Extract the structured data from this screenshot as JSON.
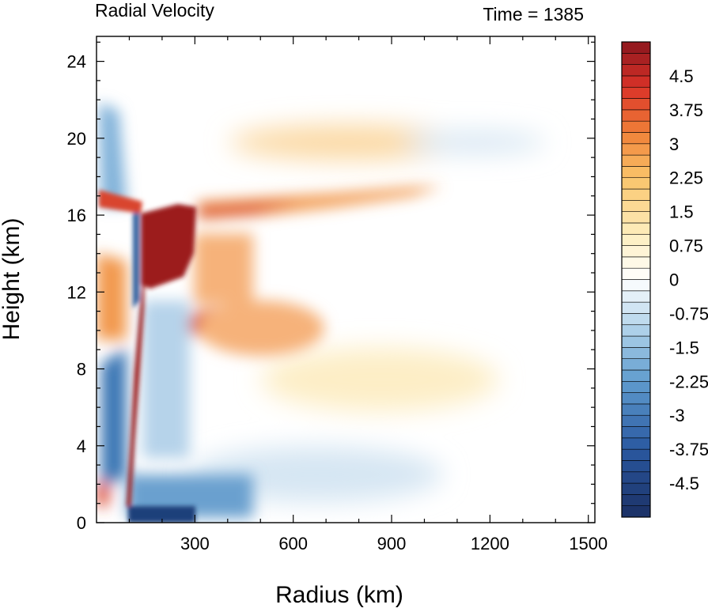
{
  "chart_data": {
    "type": "heatmap",
    "title": "Radial Velocity",
    "subtitle": "Time = 1385",
    "xlabel": "Radius (km)",
    "ylabel": "Height (km)",
    "xlim": [
      0,
      1520
    ],
    "ylim": [
      0,
      25.3
    ],
    "x_ticks": [
      300,
      600,
      900,
      1200,
      1500
    ],
    "x_tick_labels": [
      "300",
      "600",
      "900",
      "1200",
      "1500"
    ],
    "y_ticks": [
      0,
      4,
      8,
      12,
      16,
      20,
      24
    ],
    "y_tick_labels": [
      "0",
      "4",
      "8",
      "12",
      "16",
      "20",
      "24"
    ],
    "grid": false,
    "colorbar": {
      "placement": "right",
      "levels": [
        -5.25,
        -5.0,
        -4.75,
        -4.5,
        -4.25,
        -4.0,
        -3.75,
        -3.5,
        -3.25,
        -3.0,
        -2.75,
        -2.5,
        -2.25,
        -2.0,
        -1.75,
        -1.5,
        -1.25,
        -1.0,
        -0.75,
        -0.5,
        -0.25,
        0,
        0.25,
        0.5,
        0.75,
        1.0,
        1.25,
        1.5,
        1.75,
        2.0,
        2.25,
        2.5,
        2.75,
        3.0,
        3.25,
        3.5,
        3.75,
        4.0,
        4.25,
        4.5,
        4.75,
        5.0,
        5.25
      ],
      "labels": [
        "4.5",
        "3.75",
        "3",
        "2.25",
        "1.5",
        "0.75",
        "0",
        "-0.75",
        "-1.5",
        "-2.25",
        "-3",
        "-3.75",
        "-4.5"
      ],
      "label_values": [
        4.5,
        3.75,
        3.0,
        2.25,
        1.5,
        0.75,
        0,
        -0.75,
        -1.5,
        -2.25,
        -3.0,
        -3.75,
        -4.5
      ]
    },
    "features": [
      {
        "x": [
          150,
          260
        ],
        "y": [
          12.5,
          16.5
        ],
        "value": 5.5
      },
      {
        "x": [
          100,
          150
        ],
        "y": [
          1,
          16
        ],
        "value": 5.5
      },
      {
        "x": [
          250,
          900
        ],
        "y": [
          16.2,
          17.5
        ],
        "value": 3.5
      },
      {
        "x": [
          250,
          480
        ],
        "y": [
          8.5,
          11
        ],
        "value": 3.5
      },
      {
        "x": [
          250,
          500
        ],
        "y": [
          11,
          15
        ],
        "value": 2.0
      },
      {
        "x": [
          0,
          150
        ],
        "y": [
          9,
          14
        ],
        "value": 3.0
      },
      {
        "x": [
          300,
          800
        ],
        "y": [
          18.5,
          21
        ],
        "value": 1.5
      },
      {
        "x": [
          450,
          1150
        ],
        "y": [
          5.5,
          10
        ],
        "value": 0.75
      },
      {
        "x": [
          150,
          300
        ],
        "y": [
          0,
          11
        ],
        "value": -2.0
      },
      {
        "x": [
          0,
          100
        ],
        "y": [
          2,
          9
        ],
        "value": -3.5
      },
      {
        "x": [
          300,
          1000
        ],
        "y": [
          0,
          4
        ],
        "value": -1.2
      },
      {
        "x": [
          1000,
          1480
        ],
        "y": [
          19.5,
          21
        ],
        "value": -0.8
      }
    ]
  }
}
